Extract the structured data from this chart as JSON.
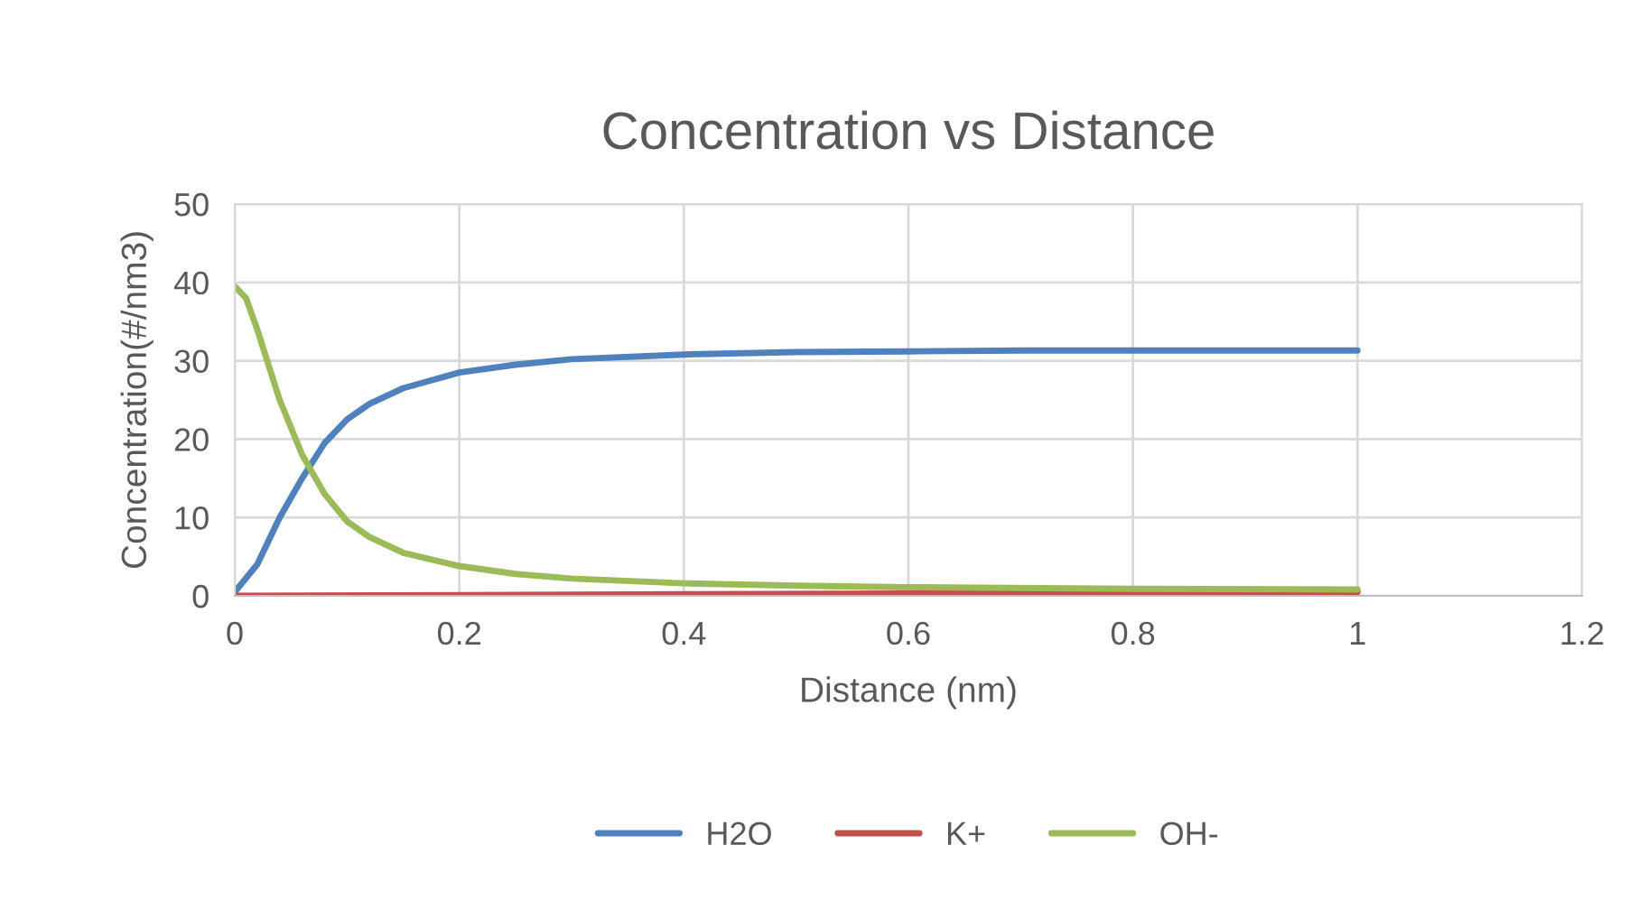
{
  "chart_data": {
    "type": "line",
    "title": "Concentration vs Distance",
    "xlabel": "Distance (nm)",
    "ylabel": "Concentration(#/nm3)",
    "xlim": [
      0,
      1.2
    ],
    "xticks": [
      0,
      0.2,
      0.4,
      0.6,
      0.8,
      1,
      1.2
    ],
    "ylim": [
      0,
      50
    ],
    "yticks": [
      0,
      10,
      20,
      30,
      40,
      50
    ],
    "grid": true,
    "legend": "bottom",
    "marker": "none",
    "line_style": "solid",
    "series": [
      {
        "name": "H2O",
        "color": "#4f81bd",
        "x": [
          0,
          0.02,
          0.04,
          0.06,
          0.08,
          0.1,
          0.12,
          0.15,
          0.2,
          0.25,
          0.3,
          0.4,
          0.5,
          0.6,
          0.7,
          0.8,
          1.0
        ],
        "values": [
          0.5,
          4,
          10,
          15,
          19.5,
          22.5,
          24.5,
          26.5,
          28.5,
          29.5,
          30.2,
          30.8,
          31.1,
          31.2,
          31.3,
          31.3,
          31.3
        ]
      },
      {
        "name": "K+",
        "color": "#c0504d",
        "x": [
          0,
          0.2,
          0.4,
          0.6,
          0.8,
          1.0
        ],
        "values": [
          0,
          0.1,
          0.2,
          0.3,
          0.4,
          0.5
        ]
      },
      {
        "name": "OH-",
        "color": "#9bbb59",
        "x": [
          0,
          0.01,
          0.02,
          0.04,
          0.06,
          0.08,
          0.1,
          0.12,
          0.15,
          0.2,
          0.25,
          0.3,
          0.4,
          0.5,
          0.6,
          0.8,
          1.0
        ],
        "values": [
          39.5,
          38,
          34,
          25,
          18,
          13,
          9.5,
          7.5,
          5.5,
          3.8,
          2.8,
          2.2,
          1.6,
          1.3,
          1.1,
          0.9,
          0.8
        ]
      }
    ]
  }
}
